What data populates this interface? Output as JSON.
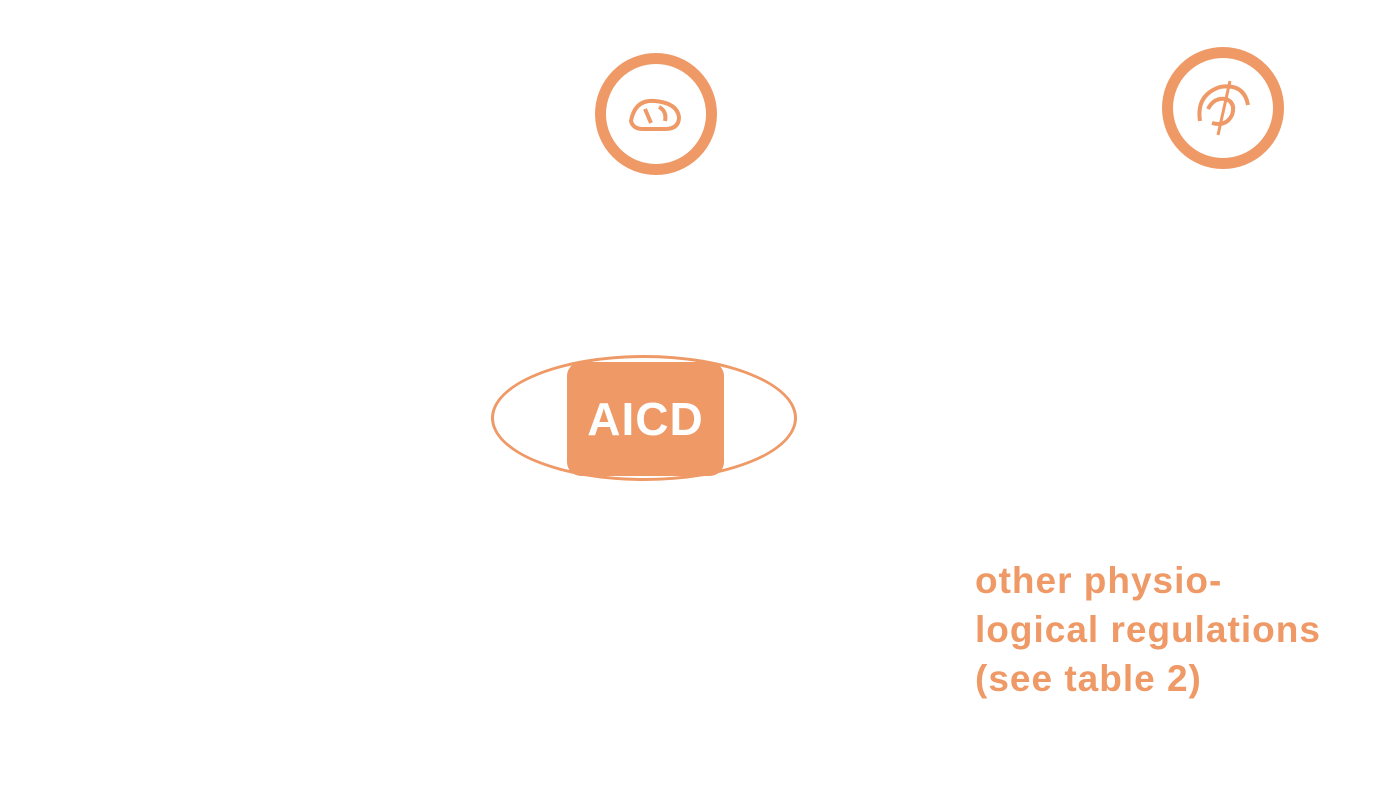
{
  "colors": {
    "accent": "#ee9966",
    "background": "#ffffff"
  },
  "center_node": {
    "label": "AICD"
  },
  "top_left_node": {
    "icon": "ring-glyph-icon"
  },
  "top_right_node": {
    "icon": "ring-glyph-icon"
  },
  "right_note": {
    "line1": "other physio-",
    "line2": "logical regulations",
    "line3": "(see table 2)"
  }
}
